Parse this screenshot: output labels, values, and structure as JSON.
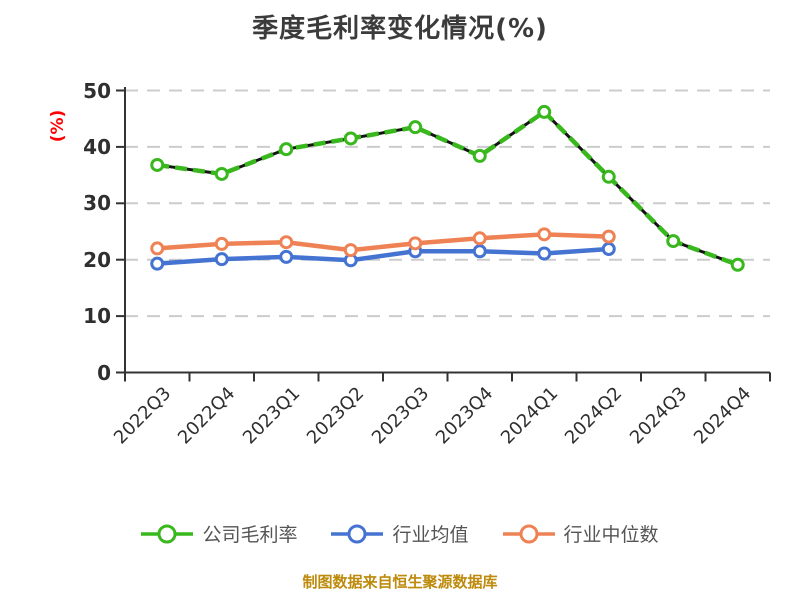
{
  "chart_data": {
    "type": "line",
    "title": "季度毛利率变化情况(%)",
    "ylabel": "(%)",
    "xlabel": "",
    "ylim": [
      0,
      50
    ],
    "yticks": [
      0,
      10,
      20,
      30,
      40,
      50
    ],
    "grid": "horizontal-dashed",
    "legend_position": "bottom",
    "categories": [
      "2022Q3",
      "2022Q4",
      "2023Q1",
      "2023Q2",
      "2023Q3",
      "2023Q4",
      "2024Q1",
      "2024Q2",
      "2024Q3",
      "2024Q4"
    ],
    "series": [
      {
        "name": "公司毛利率",
        "color": "#39b81e",
        "line_style": "dashed-over-dark",
        "values": [
          36.8,
          35.2,
          39.6,
          41.5,
          43.5,
          38.4,
          46.2,
          34.7,
          23.3,
          19.1
        ]
      },
      {
        "name": "行业均值",
        "color": "#4573d2",
        "line_style": "solid",
        "values": [
          19.3,
          20.1,
          20.5,
          19.9,
          21.5,
          21.5,
          21.1,
          21.9,
          null,
          null
        ]
      },
      {
        "name": "行业中位数",
        "color": "#ef8254",
        "line_style": "solid",
        "values": [
          22.0,
          22.8,
          23.1,
          21.7,
          22.9,
          23.8,
          24.5,
          24.1,
          null,
          null
        ]
      }
    ],
    "colors": {
      "background": "#ffffff",
      "title": "#3b3b3b",
      "ylabel": "#ff0000",
      "axis": "#333333",
      "grid": "#cccccc",
      "tick_label": "#2f2f2f",
      "legend_text": "#555555",
      "source_note": "#bd8a0b",
      "marker_fill": "#ffffff",
      "dark_underlay": "#141414"
    },
    "source_note": "制图数据来自恒生聚源数据库"
  }
}
